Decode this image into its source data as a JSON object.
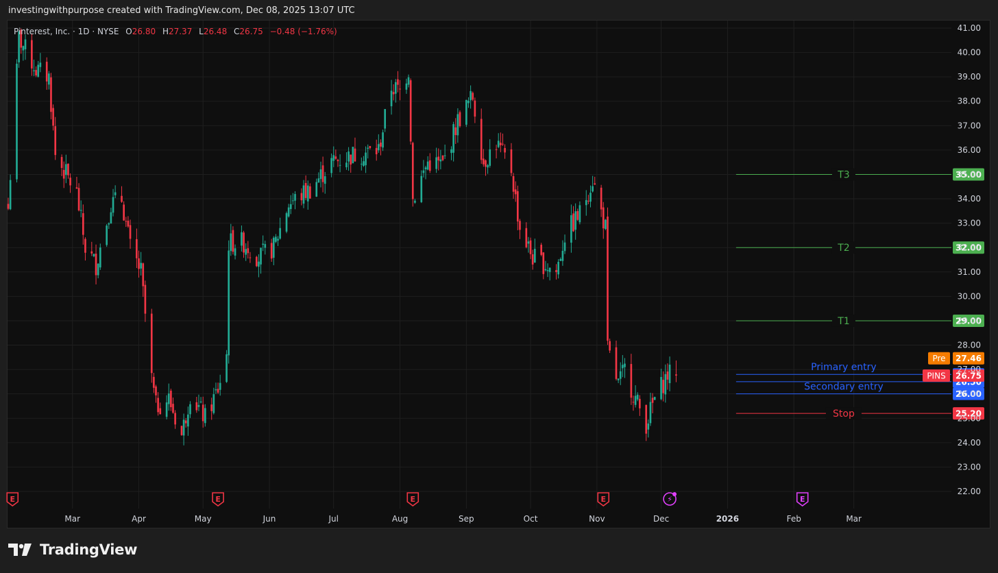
{
  "header": {
    "attribution": "investingwithpurpose created with TradingView.com, Dec 08, 2025 13:07 UTC"
  },
  "legend": {
    "symbol_line": "Pinterest, Inc. · 1D · NYSE",
    "o_label": "O",
    "o_value": "26.80",
    "h_label": "H",
    "h_value": "27.37",
    "l_label": "L",
    "l_value": "26.48",
    "c_label": "C",
    "c_value": "26.75",
    "change": "−0.48 (−1.76%)"
  },
  "footer": {
    "brand": "TradingView"
  },
  "colors": {
    "up": "#22ab94",
    "down": "#f23645",
    "target": "#4caf50",
    "entry": "#2962ff",
    "stop": "#f23645",
    "pre": "#f57c00",
    "grid": "#1f1f1f",
    "event": "#f23645",
    "dividend": "#e040fb"
  },
  "chart_data": {
    "type": "candlestick",
    "y_ticks": [
      "41.00",
      "40.00",
      "39.00",
      "38.00",
      "37.00",
      "36.00",
      "35.00",
      "34.00",
      "33.00",
      "32.00",
      "31.00",
      "30.00",
      "29.00",
      "28.00",
      "27.00",
      "26.00",
      "25.00",
      "24.00",
      "23.00",
      "22.00"
    ],
    "ylim": [
      21.9,
      41.2
    ],
    "x_ticks": [
      "Mar",
      "Apr",
      "May",
      "Jun",
      "Jul",
      "Aug",
      "Sep",
      "Oct",
      "Nov",
      "Dec",
      "2026",
      "Feb",
      "Mar"
    ],
    "x_tick_dates": [
      "2025-03-01",
      "2025-04-01",
      "2025-05-01",
      "2025-06-01",
      "2025-07-01",
      "2025-08-01",
      "2025-09-01",
      "2025-10-01",
      "2025-11-01",
      "2025-12-01",
      "2026-01-01",
      "2026-02-01",
      "2026-03-01"
    ],
    "x_range": [
      "2025-01-30",
      "2026-03-20"
    ],
    "anchors": [
      [
        "2025-01-30",
        33.6
      ],
      [
        "2025-02-04",
        40.6
      ],
      [
        "2025-02-12",
        39.3
      ],
      [
        "2025-02-18",
        39.0
      ],
      [
        "2025-02-21",
        35.8
      ],
      [
        "2025-03-03",
        34.2
      ],
      [
        "2025-03-07",
        32.0
      ],
      [
        "2025-03-12",
        31.3
      ],
      [
        "2025-03-19",
        33.8
      ],
      [
        "2025-03-24",
        34.0
      ],
      [
        "2025-03-28",
        32.0
      ],
      [
        "2025-04-02",
        31.0
      ],
      [
        "2025-04-07",
        26.6
      ],
      [
        "2025-04-09",
        25.5
      ],
      [
        "2025-04-15",
        25.8
      ],
      [
        "2025-04-21",
        24.3
      ],
      [
        "2025-04-25",
        26.0
      ],
      [
        "2025-05-02",
        25.0
      ],
      [
        "2025-05-08",
        26.2
      ],
      [
        "2025-05-12",
        27.6
      ],
      [
        "2025-05-13",
        32.2
      ],
      [
        "2025-05-20",
        32.2
      ],
      [
        "2025-05-27",
        31.6
      ],
      [
        "2025-06-03",
        32.0
      ],
      [
        "2025-06-10",
        33.8
      ],
      [
        "2025-06-20",
        34.4
      ],
      [
        "2025-06-30",
        35.5
      ],
      [
        "2025-07-10",
        35.8
      ],
      [
        "2025-07-22",
        36.0
      ],
      [
        "2025-07-28",
        38.6
      ],
      [
        "2025-08-01",
        38.4
      ],
      [
        "2025-08-05",
        39.3
      ],
      [
        "2025-08-07",
        34.0
      ],
      [
        "2025-08-14",
        35.5
      ],
      [
        "2025-08-21",
        35.4
      ],
      [
        "2025-08-28",
        37.2
      ],
      [
        "2025-09-04",
        38.2
      ],
      [
        "2025-09-09",
        35.5
      ],
      [
        "2025-09-15",
        36.3
      ],
      [
        "2025-09-22",
        35.2
      ],
      [
        "2025-09-26",
        32.8
      ],
      [
        "2025-10-02",
        31.6
      ],
      [
        "2025-10-08",
        31.3
      ],
      [
        "2025-10-13",
        31.0
      ],
      [
        "2025-10-17",
        32.5
      ],
      [
        "2025-10-24",
        33.4
      ],
      [
        "2025-10-30",
        34.8
      ],
      [
        "2025-11-05",
        32.8
      ],
      [
        "2025-11-06",
        27.8
      ],
      [
        "2025-11-11",
        26.4
      ],
      [
        "2025-11-14",
        27.0
      ],
      [
        "2025-11-19",
        25.8
      ],
      [
        "2025-11-24",
        24.8
      ],
      [
        "2025-11-28",
        25.8
      ],
      [
        "2025-12-04",
        26.8
      ],
      [
        "2025-12-08",
        26.75
      ]
    ],
    "levels": [
      {
        "label": "T3",
        "price": 35.0,
        "tag": "35.00",
        "kind": "target"
      },
      {
        "label": "T2",
        "price": 32.0,
        "tag": "32.00",
        "kind": "target"
      },
      {
        "label": "T1",
        "price": 29.0,
        "tag": "29.00",
        "kind": "target"
      },
      {
        "label": "Primary entry",
        "price": 26.8,
        "tag": "26.80",
        "kind": "entry"
      },
      {
        "label": "Secondary entry",
        "price": 26.0,
        "tag": "26.00",
        "kind": "entry"
      },
      {
        "label": "",
        "price": 26.5,
        "tag": "26.50",
        "kind": "entry"
      },
      {
        "label": "Stop",
        "price": 25.2,
        "tag": "25.20",
        "kind": "stop"
      }
    ],
    "levels_start_date": "2026-01-05",
    "price_tags": [
      {
        "prefix": "Pre",
        "price": 27.46,
        "tag": "27.46",
        "kind": "pre"
      },
      {
        "prefix": "PINS",
        "price": 26.75,
        "tag": "26.75",
        "kind": "last"
      }
    ],
    "event_markers": [
      {
        "date": "2025-02-01",
        "glyph": "E",
        "kind": "earnings"
      },
      {
        "date": "2025-05-08",
        "glyph": "E",
        "kind": "earnings"
      },
      {
        "date": "2025-08-07",
        "glyph": "E",
        "kind": "earnings"
      },
      {
        "date": "2025-11-04",
        "glyph": "E",
        "kind": "earnings"
      },
      {
        "date": "2025-12-05",
        "glyph": "⚡",
        "kind": "dividend"
      },
      {
        "date": "2026-02-05",
        "glyph": "E",
        "kind": "earnings-future"
      }
    ]
  }
}
